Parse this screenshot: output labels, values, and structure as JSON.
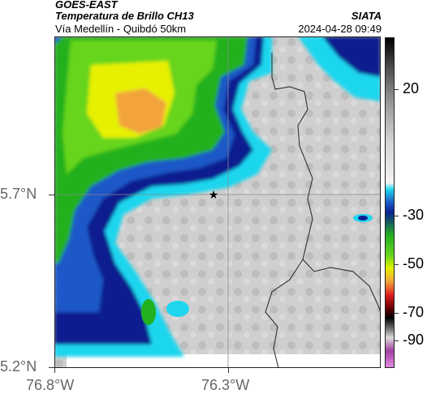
{
  "header": {
    "satellite": "GOES-EAST",
    "product": "Temperatura de Brillo CH13",
    "region": "Vía Medellín - Quibdó 50km",
    "org": "SIATA",
    "datetime": "2024-04-28 09:49"
  },
  "axes": {
    "lat_labels": [
      "5.7°N",
      "5.2°N"
    ],
    "lon_labels": [
      "76.8°W",
      "76.3°W"
    ]
  },
  "colorbar": {
    "tick_labels": [
      "20",
      "-30",
      "-50",
      "-70",
      "-90"
    ]
  },
  "marker": {
    "type": "star",
    "icon": "star-icon"
  },
  "colors": {
    "cold_green": "#22b11f",
    "yellow": "#e6f000",
    "orange": "#f2a33a",
    "navy": "#0b1f8f",
    "cyan": "#1fd6ee",
    "warm_gray": "#cfcfcf"
  }
}
